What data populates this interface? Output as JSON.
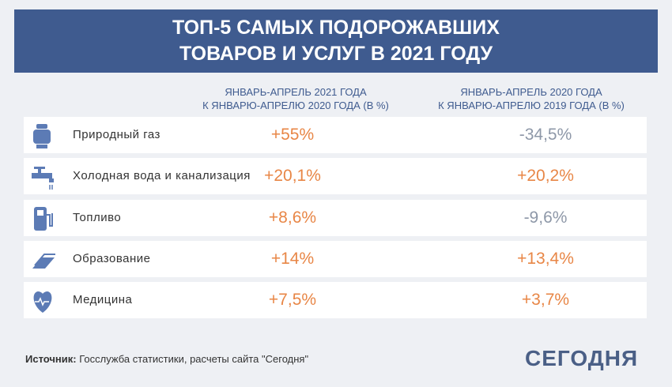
{
  "header": {
    "title_lines": [
      "ТОП-5 САМЫХ ПОДОРОЖАВШИХ",
      "ТОВАРОВ И УСЛУГ В 2021 ГОДУ"
    ]
  },
  "table": {
    "columns": [
      [
        "ЯНВАРЬ-АПРЕЛЬ 2021 ГОДА",
        "К ЯНВАРЮ-АПРЕЛЮ 2020 ГОДА (В %)"
      ],
      [
        "ЯНВАРЬ-АПРЕЛЬ 2020 ГОДА",
        "К ЯНВАРЮ-АПРЕЛЮ 2019 ГОДА (В %)"
      ]
    ],
    "rows": [
      {
        "label": "Природный газ",
        "values": [
          "+55%",
          "-34,5%"
        ]
      },
      {
        "label": "Холодная вода и канализация",
        "values": [
          "+20,1%",
          "+20,2%"
        ]
      },
      {
        "label": "Топливо",
        "values": [
          "+8,6%",
          "-9,6%"
        ]
      },
      {
        "label": "Образование",
        "values": [
          "+14%",
          "+13,4%"
        ]
      },
      {
        "label": "Медицина",
        "values": [
          "+7,5%",
          "+3,7%"
        ]
      }
    ]
  },
  "footer": {
    "source_label": "Источник:",
    "source_text": "Госслужба статистики, расчеты сайта \"Сегодня\"",
    "logo": "СЕГОДНЯ"
  }
}
